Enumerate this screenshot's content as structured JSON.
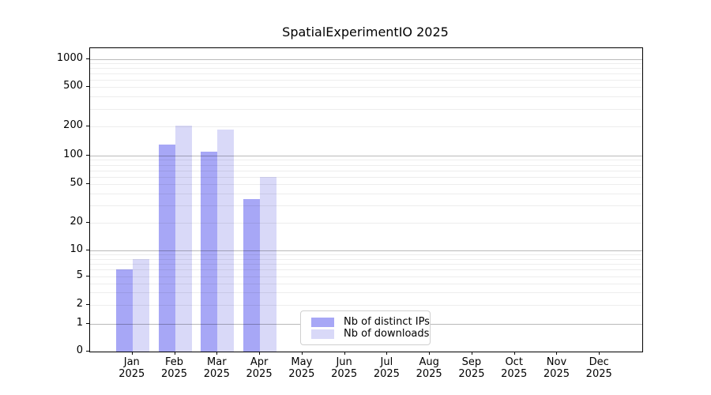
{
  "chart_data": {
    "type": "bar",
    "title": "SpatialExperimentIO 2025",
    "categories": [
      "Jan",
      "Feb",
      "Mar",
      "Apr",
      "May",
      "Jun",
      "Jul",
      "Aug",
      "Sep",
      "Oct",
      "Nov",
      "Dec"
    ],
    "category_year": "2025",
    "series": [
      {
        "name": "Nb of distinct IPs",
        "color": "#a7a7f6",
        "values": [
          6,
          130,
          110,
          35,
          0,
          0,
          0,
          0,
          0,
          0,
          0,
          0
        ]
      },
      {
        "name": "Nb of downloads",
        "color": "#d9d9f8",
        "values": [
          8,
          205,
          185,
          60,
          0,
          0,
          0,
          0,
          0,
          0,
          0,
          0
        ]
      }
    ],
    "xlabel": "",
    "ylabel": "",
    "yticks": [
      0,
      1,
      2,
      5,
      10,
      20,
      50,
      100,
      200,
      500,
      1000
    ],
    "ylim": [
      0,
      1300
    ],
    "yscale": "log-above-1-linear-below",
    "grid": "horizontal minor and major gridlines on",
    "legend_position": "lower center",
    "colors": {
      "minor_gridline": "rgba(0,0,0,0.07)",
      "major_gridline": "rgba(0,0,0,0.27)",
      "axis": "#000000",
      "background": "#ffffff"
    }
  }
}
